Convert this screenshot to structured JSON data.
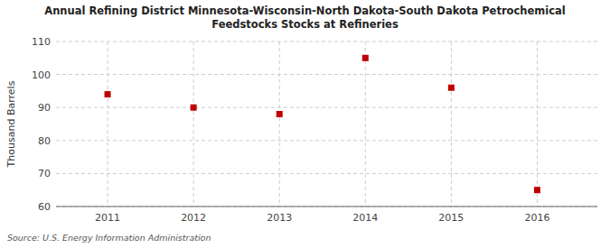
{
  "chart_data": {
    "type": "scatter",
    "title": "Annual Refining District Minnesota-Wisconsin-North Dakota-South Dakota Petrochemical\nFeedstocks Stocks at Refineries",
    "ylabel": "Thousand Barrels",
    "source": "Source: U.S. Energy Information Administration",
    "x": [
      2011,
      2012,
      2013,
      2014,
      2015,
      2016
    ],
    "values": [
      94,
      90,
      88,
      105,
      96,
      65
    ],
    "xlim": [
      2010.4,
      2016.7
    ],
    "xticks": [
      2011,
      2012,
      2013,
      2014,
      2015,
      2016
    ],
    "ylim": [
      60,
      110
    ],
    "yticks": [
      60,
      70,
      80,
      90,
      100,
      110
    ],
    "color": "#c00000",
    "marker": "square",
    "grid": true
  }
}
